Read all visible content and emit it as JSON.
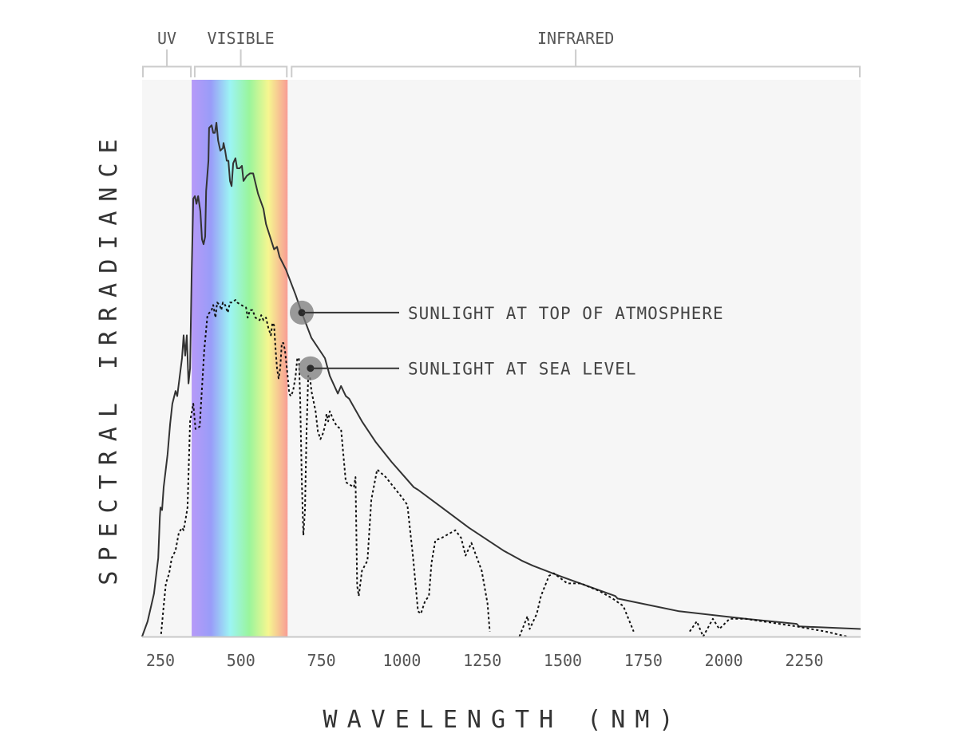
{
  "chart_data": {
    "type": "line",
    "title": "",
    "xlabel": "WAVELENGTH (NM)",
    "ylabel": "SPECTRAL IRRADIANCE",
    "xlim": [
      193,
      2425
    ],
    "ylim": [
      0,
      2.2
    ],
    "x_ticks": [
      250,
      500,
      750,
      1000,
      1250,
      1500,
      1750,
      2000,
      2250
    ],
    "grid": false,
    "regions": [
      {
        "label": "UV",
        "range": [
          193,
          347
        ]
      },
      {
        "label": "VISIBLE",
        "range": [
          354,
          645
        ],
        "spectrum_band": [
          347,
          645
        ]
      },
      {
        "label": "INFRARED",
        "range": [
          655,
          2425
        ]
      }
    ],
    "spectrum_colors": [
      "#b69af8",
      "#999cf8",
      "#9cf4f4",
      "#9af59c",
      "#f6f690",
      "#f89c94"
    ],
    "series": [
      {
        "name": "SUNLIGHT AT TOP OF ATMOSPHERE",
        "style": "solid",
        "color": "#333333",
        "annotation_point": [
          689,
          1.28
        ],
        "points": [
          [
            193,
            0
          ],
          [
            210,
            0.06
          ],
          [
            230,
            0.17
          ],
          [
            243,
            0.31
          ],
          [
            248,
            0.47
          ],
          [
            250,
            0.51
          ],
          [
            255,
            0.5
          ],
          [
            260,
            0.59
          ],
          [
            272,
            0.72
          ],
          [
            280,
            0.84
          ],
          [
            287,
            0.92
          ],
          [
            297,
            0.97
          ],
          [
            302,
            0.95
          ],
          [
            310,
            1.03
          ],
          [
            317,
            1.1
          ],
          [
            322,
            1.19
          ],
          [
            327,
            1.11
          ],
          [
            332,
            1.19
          ],
          [
            337,
            1.0
          ],
          [
            342,
            1.06
          ],
          [
            347,
            1.44
          ],
          [
            352,
            1.73
          ],
          [
            357,
            1.74
          ],
          [
            362,
            1.71
          ],
          [
            367,
            1.74
          ],
          [
            374,
            1.68
          ],
          [
            379,
            1.57
          ],
          [
            384,
            1.55
          ],
          [
            389,
            1.58
          ],
          [
            392,
            1.76
          ],
          [
            399,
            1.88
          ],
          [
            401,
            2.01
          ],
          [
            409,
            2.02
          ],
          [
            414,
            1.99
          ],
          [
            419,
            1.99
          ],
          [
            424,
            2.03
          ],
          [
            429,
            1.96
          ],
          [
            436,
            1.92
          ],
          [
            444,
            1.93
          ],
          [
            446,
            1.95
          ],
          [
            451,
            1.92
          ],
          [
            456,
            1.88
          ],
          [
            461,
            1.88
          ],
          [
            466,
            1.8
          ],
          [
            471,
            1.78
          ],
          [
            476,
            1.87
          ],
          [
            483,
            1.89
          ],
          [
            488,
            1.85
          ],
          [
            496,
            1.85
          ],
          [
            503,
            1.86
          ],
          [
            508,
            1.8
          ],
          [
            518,
            1.82
          ],
          [
            528,
            1.83
          ],
          [
            538,
            1.83
          ],
          [
            553,
            1.75
          ],
          [
            570,
            1.69
          ],
          [
            578,
            1.63
          ],
          [
            603,
            1.53
          ],
          [
            612,
            1.54
          ],
          [
            620,
            1.5
          ],
          [
            640,
            1.45
          ],
          [
            670,
            1.35
          ],
          [
            689,
            1.28
          ],
          [
            719,
            1.18
          ],
          [
            761,
            1.1
          ],
          [
            776,
            1.03
          ],
          [
            801,
            0.96
          ],
          [
            811,
            0.99
          ],
          [
            826,
            0.95
          ],
          [
            836,
            0.94
          ],
          [
            876,
            0.85
          ],
          [
            918,
            0.77
          ],
          [
            968,
            0.69
          ],
          [
            1037,
            0.59
          ],
          [
            1050,
            0.58
          ],
          [
            1124,
            0.51
          ],
          [
            1208,
            0.43
          ],
          [
            1315,
            0.34
          ],
          [
            1372,
            0.3
          ],
          [
            1407,
            0.28
          ],
          [
            1489,
            0.24
          ],
          [
            1663,
            0.16
          ],
          [
            1670,
            0.15
          ],
          [
            1861,
            0.1
          ],
          [
            2068,
            0.07
          ],
          [
            2226,
            0.05
          ],
          [
            2234,
            0.04
          ],
          [
            2425,
            0.03
          ]
        ]
      },
      {
        "name": "SUNLIGHT AT SEA LEVEL",
        "style": "dotted",
        "color": "#111111",
        "annotation_point": [
          716,
          1.06
        ],
        "points": [
          [
            252,
            0.01
          ],
          [
            260,
            0.12
          ],
          [
            267,
            0.21
          ],
          [
            277,
            0.25
          ],
          [
            285,
            0.31
          ],
          [
            297,
            0.34
          ],
          [
            307,
            0.41
          ],
          [
            317,
            0.43
          ],
          [
            322,
            0.42
          ],
          [
            329,
            0.47
          ],
          [
            334,
            0.51
          ],
          [
            342,
            0.85
          ],
          [
            352,
            0.92
          ],
          [
            359,
            0.82
          ],
          [
            372,
            0.83
          ],
          [
            377,
            0.94
          ],
          [
            386,
            1.13
          ],
          [
            396,
            1.27
          ],
          [
            409,
            1.29
          ],
          [
            414,
            1.31
          ],
          [
            421,
            1.26
          ],
          [
            426,
            1.32
          ],
          [
            434,
            1.31
          ],
          [
            439,
            1.29
          ],
          [
            444,
            1.32
          ],
          [
            451,
            1.31
          ],
          [
            459,
            1.28
          ],
          [
            466,
            1.32
          ],
          [
            473,
            1.32
          ],
          [
            483,
            1.33
          ],
          [
            488,
            1.32
          ],
          [
            501,
            1.31
          ],
          [
            516,
            1.3
          ],
          [
            521,
            1.26
          ],
          [
            528,
            1.29
          ],
          [
            536,
            1.29
          ],
          [
            545,
            1.26
          ],
          [
            558,
            1.25
          ],
          [
            563,
            1.27
          ],
          [
            570,
            1.25
          ],
          [
            578,
            1.26
          ],
          [
            585,
            1.22
          ],
          [
            593,
            1.19
          ],
          [
            598,
            1.24
          ],
          [
            603,
            1.23
          ],
          [
            608,
            1.13
          ],
          [
            612,
            1.06
          ],
          [
            617,
            1.02
          ],
          [
            622,
            1.06
          ],
          [
            627,
            1.16
          ],
          [
            632,
            1.16
          ],
          [
            637,
            1.13
          ],
          [
            645,
            1.03
          ],
          [
            650,
            0.96
          ],
          [
            655,
            0.95
          ],
          [
            662,
            0.97
          ],
          [
            670,
            1.03
          ],
          [
            675,
            1.1
          ],
          [
            680,
            1.1
          ],
          [
            684,
            0.94
          ],
          [
            689,
            0.62
          ],
          [
            694,
            0.4
          ],
          [
            699,
            0.5
          ],
          [
            704,
            0.81
          ],
          [
            709,
            1.03
          ],
          [
            714,
            1.03
          ],
          [
            719,
            0.97
          ],
          [
            724,
            0.94
          ],
          [
            732,
            0.89
          ],
          [
            739,
            0.81
          ],
          [
            747,
            0.78
          ],
          [
            754,
            0.8
          ],
          [
            761,
            0.83
          ],
          [
            766,
            0.88
          ],
          [
            771,
            0.85
          ],
          [
            776,
            0.89
          ],
          [
            789,
            0.85
          ],
          [
            799,
            0.83
          ],
          [
            811,
            0.82
          ],
          [
            826,
            0.61
          ],
          [
            851,
            0.59
          ],
          [
            856,
            0.63
          ],
          [
            861,
            0.2
          ],
          [
            866,
            0.16
          ],
          [
            876,
            0.26
          ],
          [
            893,
            0.3
          ],
          [
            905,
            0.54
          ],
          [
            923,
            0.66
          ],
          [
            950,
            0.63
          ],
          [
            1000,
            0.55
          ],
          [
            1017,
            0.52
          ],
          [
            1035,
            0.31
          ],
          [
            1050,
            0.1
          ],
          [
            1059,
            0.09
          ],
          [
            1072,
            0.14
          ],
          [
            1084,
            0.16
          ],
          [
            1092,
            0.29
          ],
          [
            1104,
            0.38
          ],
          [
            1124,
            0.39
          ],
          [
            1166,
            0.42
          ],
          [
            1184,
            0.39
          ],
          [
            1198,
            0.32
          ],
          [
            1216,
            0.37
          ],
          [
            1248,
            0.26
          ],
          [
            1266,
            0.13
          ],
          [
            1273,
            0.02
          ],
          null,
          [
            1365,
            0.0
          ],
          [
            1390,
            0.08
          ],
          [
            1397,
            0.03
          ],
          [
            1419,
            0.09
          ],
          [
            1432,
            0.16
          ],
          [
            1457,
            0.24
          ],
          [
            1472,
            0.25
          ],
          [
            1514,
            0.21
          ],
          [
            1556,
            0.21
          ],
          [
            1613,
            0.18
          ],
          [
            1655,
            0.15
          ],
          [
            1688,
            0.12
          ],
          [
            1720,
            0.02
          ],
          null,
          [
            1894,
            0.02
          ],
          [
            1916,
            0.06
          ],
          [
            1936,
            0.0
          ],
          [
            1966,
            0.07
          ],
          [
            1986,
            0.03
          ],
          [
            2018,
            0.07
          ],
          [
            2068,
            0.07
          ],
          [
            2226,
            0.04
          ],
          [
            2316,
            0.02
          ],
          [
            2383,
            0.0
          ]
        ]
      }
    ]
  }
}
